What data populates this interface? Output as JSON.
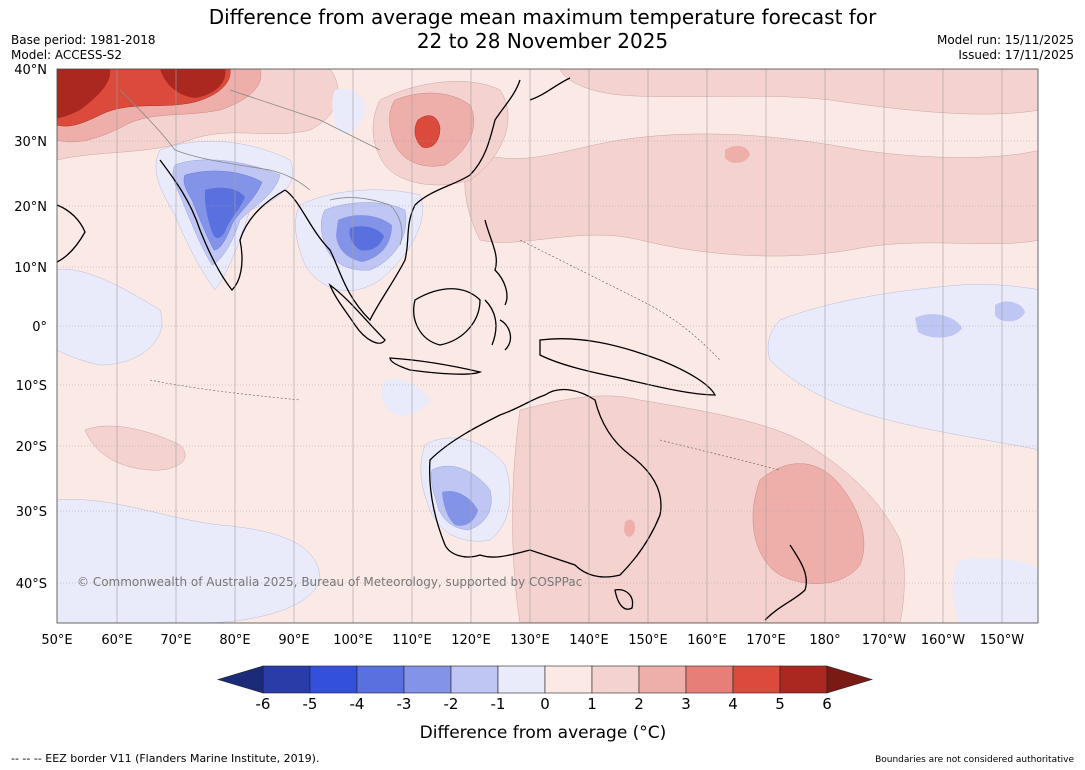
{
  "title": {
    "line1": "Difference from average mean maximum temperature forecast for",
    "line2": "22 to 28 November 2025"
  },
  "meta": {
    "base_period": "Base period: 1981-2018",
    "model": "Model: ACCESS-S2",
    "model_run": "Model run: 15/11/2025",
    "issued": "Issued: 17/11/2025"
  },
  "map": {
    "lat_labels": [
      "40°N",
      "30°N",
      "20°N",
      "10°N",
      "0°",
      "10°S",
      "20°S",
      "30°S",
      "40°S"
    ],
    "lon_labels": [
      "50°E",
      "60°E",
      "70°E",
      "80°E",
      "90°E",
      "100°E",
      "110°E",
      "120°E",
      "130°E",
      "140°E",
      "150°E",
      "160°E",
      "170°E",
      "180°",
      "170°W",
      "160°W",
      "150°W"
    ],
    "copyright": "© Commonwealth of Australia 2025, Bureau of Meteorology, supported by COSPPac",
    "colors": {
      "ocean_land_background": "#fbe9e6",
      "pos_1_2": "#f4d2d0",
      "pos_2_3": "#eeaeaa",
      "pos_4_5": "#dc4a3c",
      "neg_0_1": "#e9ebfa",
      "neg_1_2": "#bfc6f3",
      "neg_2_3": "#8393e8",
      "neg_3_4": "#5b70df"
    }
  },
  "colorbar": {
    "ticks": [
      "-6",
      "-5",
      "-4",
      "-3",
      "-2",
      "-1",
      "0",
      "1",
      "2",
      "3",
      "4",
      "5",
      "6"
    ],
    "colors": [
      "#2a3ca8",
      "#3350dd",
      "#5b70df",
      "#8393e8",
      "#bfc6f3",
      "#e9ebfa",
      "#fbe9e6",
      "#f4d2d0",
      "#eeaeaa",
      "#e57f78",
      "#dc4a3c",
      "#ab2820"
    ],
    "low_extend_color": "#1c2a7a",
    "high_extend_color": "#7a1a14",
    "label": "Difference from average (°C)"
  },
  "footer": {
    "eez": "-- -- -- EEZ border V11 (Flanders Marine Institute, 2019).",
    "boundaries": "Boundaries are not considered authoritative"
  }
}
